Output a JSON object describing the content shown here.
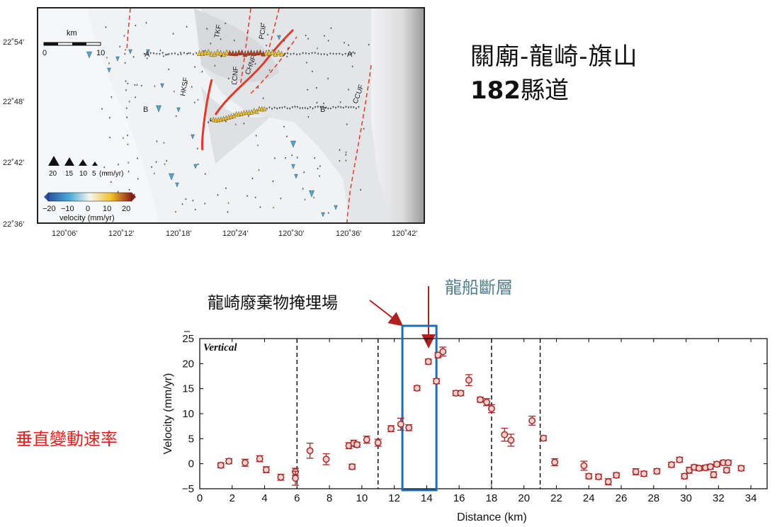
{
  "map": {
    "lat_ticks": [
      "22˚54'",
      "22˚48'",
      "22˚42'",
      "22˚36'"
    ],
    "lon_ticks": [
      "120˚06'",
      "120˚12'",
      "120˚18'",
      "120˚24'",
      "120˚30'",
      "120˚36'",
      "120˚42'"
    ],
    "scale_bar": {
      "unit": "km",
      "start": "0",
      "end": "10"
    },
    "fault_labels": [
      "TKF",
      "PCIF",
      "LCNF",
      "CHNF",
      "HKSF",
      "CCUF"
    ],
    "profile_labels": [
      "A",
      "A'",
      "B",
      "B'"
    ],
    "triangle_legend": {
      "values": [
        "20",
        "15",
        "10",
        "5"
      ],
      "unit": "(mm/yr)"
    },
    "colorbar": {
      "ticks": [
        "−20",
        "−10",
        "0",
        "10",
        "20"
      ],
      "label": "velocity (mm/yr)"
    },
    "colors": {
      "up": "#f2c12e",
      "down": "#49a9d6",
      "strong_up": "#c0391b",
      "fault": "#e03a2c"
    }
  },
  "title": {
    "line1": "關廟-龍崎-旗山",
    "line2_bold": "182",
    "line2_rest": "縣道"
  },
  "annotations": {
    "landfill": "龍崎廢棄物掩埋場",
    "fault": "龍船斷層",
    "vertical_rate": "垂直變動速率"
  },
  "chart_data": {
    "type": "scatter",
    "panel_label": "Vertical",
    "xlabel": "Distance (km)",
    "ylabel": "Velocity (mm/yr)",
    "xlim": [
      0,
      35
    ],
    "ylim": [
      -5,
      25
    ],
    "x_ticks": [
      0,
      2,
      4,
      6,
      8,
      10,
      12,
      14,
      16,
      18,
      20,
      22,
      24,
      26,
      28,
      30,
      32,
      34
    ],
    "y_ticks": [
      -5,
      0,
      5,
      10,
      15,
      20,
      25
    ],
    "vertical_dashed_lines_x": [
      6,
      11,
      18,
      21
    ],
    "highlight_box_x": [
      12.5,
      14.6
    ],
    "marker_color": "#a52a2a",
    "box_color": "#1f6fb0",
    "points": [
      {
        "x": 1.3,
        "y": -0.3,
        "err": 0.5
      },
      {
        "x": 1.8,
        "y": 0.5,
        "err": 0.5
      },
      {
        "x": 2.8,
        "y": 0.2,
        "err": 0.7
      },
      {
        "x": 3.7,
        "y": 1.0,
        "err": 0.6
      },
      {
        "x": 4.1,
        "y": -1.2,
        "err": 0.6
      },
      {
        "x": 5.0,
        "y": -2.7,
        "err": 0.6
      },
      {
        "x": 5.9,
        "y": -1.6,
        "err": 0.7
      },
      {
        "x": 5.9,
        "y": -2.9,
        "err": 1.4
      },
      {
        "x": 6.8,
        "y": 2.6,
        "err": 1.5
      },
      {
        "x": 7.8,
        "y": 0.9,
        "err": 1.1
      },
      {
        "x": 9.2,
        "y": 3.6,
        "err": 0.6
      },
      {
        "x": 9.4,
        "y": -0.6,
        "err": 0.5
      },
      {
        "x": 9.5,
        "y": 4.1,
        "err": 0.6
      },
      {
        "x": 9.7,
        "y": 3.8,
        "err": 0.5
      },
      {
        "x": 10.3,
        "y": 4.8,
        "err": 0.7
      },
      {
        "x": 11.0,
        "y": 4.2,
        "err": 0.7
      },
      {
        "x": 11.8,
        "y": 7.0,
        "err": 0.6
      },
      {
        "x": 12.4,
        "y": 7.9,
        "err": 1.2
      },
      {
        "x": 12.9,
        "y": 7.2,
        "err": 0.6
      },
      {
        "x": 13.4,
        "y": 15.1,
        "err": 0.5
      },
      {
        "x": 14.1,
        "y": 20.4,
        "err": 0.5
      },
      {
        "x": 14.6,
        "y": 16.5,
        "err": 0.5
      },
      {
        "x": 14.7,
        "y": 21.7,
        "err": 0.5
      },
      {
        "x": 15.0,
        "y": 22.4,
        "err": 0.9
      },
      {
        "x": 15.8,
        "y": 14.1,
        "err": 0.5
      },
      {
        "x": 16.1,
        "y": 14.1,
        "err": 0.5
      },
      {
        "x": 16.6,
        "y": 16.7,
        "err": 1.1
      },
      {
        "x": 17.3,
        "y": 12.8,
        "err": 0.5
      },
      {
        "x": 17.7,
        "y": 12.3,
        "err": 0.7
      },
      {
        "x": 18.0,
        "y": 11.0,
        "err": 0.8
      },
      {
        "x": 18.8,
        "y": 5.8,
        "err": 1.3
      },
      {
        "x": 19.2,
        "y": 4.7,
        "err": 1.2
      },
      {
        "x": 20.5,
        "y": 8.6,
        "err": 0.9
      },
      {
        "x": 21.2,
        "y": 5.1,
        "err": 0.5
      },
      {
        "x": 21.9,
        "y": 0.3,
        "err": 0.7
      },
      {
        "x": 23.7,
        "y": -0.4,
        "err": 0.9
      },
      {
        "x": 24.0,
        "y": -2.5,
        "err": 0.5
      },
      {
        "x": 24.6,
        "y": -2.6,
        "err": 0.5
      },
      {
        "x": 25.2,
        "y": -3.6,
        "err": 0.6
      },
      {
        "x": 25.7,
        "y": -2.3,
        "err": 0.5
      },
      {
        "x": 26.9,
        "y": -1.6,
        "err": 0.6
      },
      {
        "x": 27.4,
        "y": -2.0,
        "err": 0.5
      },
      {
        "x": 28.2,
        "y": -1.5,
        "err": 0.5
      },
      {
        "x": 29.1,
        "y": -0.2,
        "err": 0.5
      },
      {
        "x": 29.6,
        "y": 0.8,
        "err": 0.5
      },
      {
        "x": 29.9,
        "y": -2.5,
        "err": 0.5
      },
      {
        "x": 30.2,
        "y": -1.3,
        "err": 0.6
      },
      {
        "x": 30.5,
        "y": -0.7,
        "err": 0.5
      },
      {
        "x": 30.8,
        "y": -0.9,
        "err": 0.5
      },
      {
        "x": 31.2,
        "y": -0.8,
        "err": 0.5
      },
      {
        "x": 31.5,
        "y": -0.6,
        "err": 0.5
      },
      {
        "x": 31.7,
        "y": -2.2,
        "err": 0.6
      },
      {
        "x": 31.9,
        "y": -0.1,
        "err": 0.5
      },
      {
        "x": 32.3,
        "y": 0.2,
        "err": 0.5
      },
      {
        "x": 32.6,
        "y": 0.2,
        "err": 0.5
      },
      {
        "x": 32.5,
        "y": -1.3,
        "err": 0.5
      },
      {
        "x": 33.4,
        "y": -0.9,
        "err": 0.5
      }
    ]
  }
}
